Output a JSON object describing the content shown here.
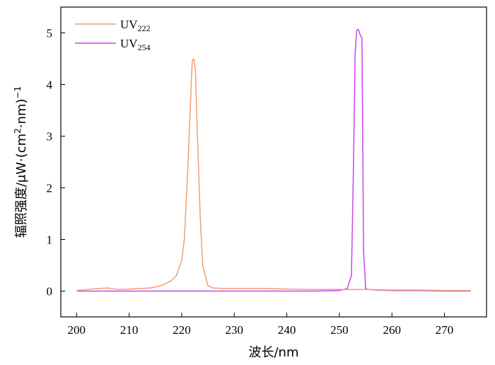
{
  "chart_data": {
    "type": "line",
    "xlabel": "波长/nm",
    "ylabel_main": "辐照强度/μW·(cm",
    "ylabel_sup2": "2",
    "ylabel_mid": "·nm)",
    "ylabel_sup_neg1": "−1",
    "xlim": [
      197,
      278
    ],
    "ylim": [
      -0.5,
      5.5
    ],
    "xticks": [
      200,
      210,
      220,
      230,
      240,
      250,
      260,
      270
    ],
    "yticks": [
      0,
      1,
      2,
      3,
      4,
      5
    ],
    "legend_position": "top-left",
    "series": [
      {
        "name_main": "UV",
        "name_sub": "222",
        "color": "#F0A070",
        "x": [
          200,
          202,
          204,
          206,
          208,
          210,
          212,
          214,
          216,
          218,
          219,
          220,
          220.5,
          221,
          221.5,
          222,
          222.3,
          222.6,
          223,
          223.5,
          224,
          225,
          226,
          228,
          230,
          232,
          236,
          240,
          245,
          250,
          255,
          260,
          265,
          270,
          275
        ],
        "y": [
          0.01,
          0.03,
          0.05,
          0.06,
          0.03,
          0.04,
          0.05,
          0.06,
          0.1,
          0.2,
          0.3,
          0.6,
          1.0,
          2.0,
          3.2,
          4.45,
          4.5,
          4.3,
          3.0,
          1.5,
          0.5,
          0.1,
          0.06,
          0.05,
          0.05,
          0.05,
          0.05,
          0.04,
          0.03,
          0.03,
          0.03,
          0.02,
          0.02,
          0.01,
          0.01
        ]
      },
      {
        "name_main": "UV",
        "name_sub": "254",
        "color": "#CC44EE",
        "x": [
          200,
          210,
          220,
          230,
          240,
          245,
          250,
          251.5,
          252.3,
          252.7,
          253,
          253.3,
          253.6,
          254,
          254.3,
          254.6,
          255,
          255.5,
          257,
          260,
          265,
          270,
          275
        ],
        "y": [
          0.0,
          0.0,
          0.0,
          0.0,
          0.0,
          0.0,
          0.01,
          0.05,
          0.3,
          2.5,
          4.6,
          5.05,
          5.07,
          4.95,
          4.9,
          0.8,
          0.05,
          0.03,
          0.02,
          0.01,
          0.01,
          0.0,
          0.0
        ]
      }
    ]
  }
}
